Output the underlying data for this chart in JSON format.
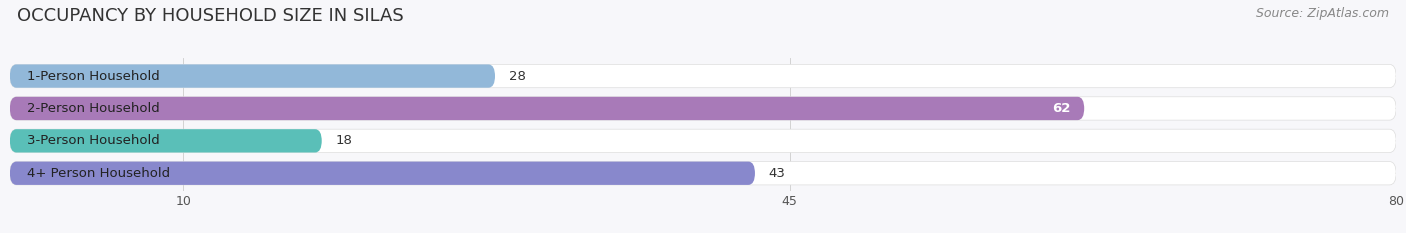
{
  "title": "OCCUPANCY BY HOUSEHOLD SIZE IN SILAS",
  "source": "Source: ZipAtlas.com",
  "categories": [
    "1-Person Household",
    "2-Person Household",
    "3-Person Household",
    "4+ Person Household"
  ],
  "values": [
    28,
    62,
    18,
    43
  ],
  "bar_colors": [
    "#92b8d9",
    "#a87ab8",
    "#5abfb8",
    "#8888cc"
  ],
  "bar_label_colors": [
    "#444444",
    "#ffffff",
    "#444444",
    "#444444"
  ],
  "row_bg_colors": [
    "#f5f5f8",
    "#f0f0f5",
    "#f5f5f8",
    "#f0f0f5"
  ],
  "xlim": [
    0,
    80
  ],
  "xstart": 0,
  "xticks": [
    10,
    45,
    80
  ],
  "background_color": "#f7f7fa",
  "bar_bg_color": "#e8e8ee",
  "title_fontsize": 13,
  "source_fontsize": 9,
  "label_fontsize": 9.5,
  "value_fontsize": 9.5,
  "tick_fontsize": 9
}
